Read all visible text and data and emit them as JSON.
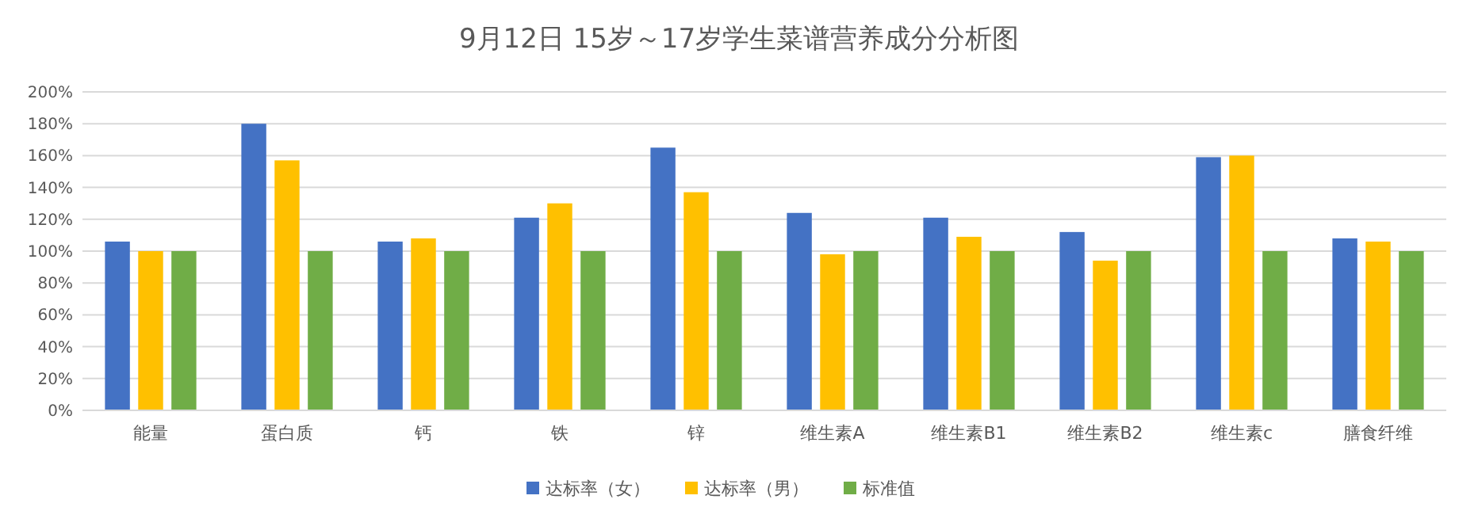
{
  "chart_data": {
    "type": "bar",
    "title": "9月12日 15岁～17岁学生菜谱营养成分分析图",
    "categories": [
      "能量",
      "蛋白质",
      "钙",
      "铁",
      "锌",
      "维生素A",
      "维生素B1",
      "维生素B2",
      "维生素c",
      "膳食纤维"
    ],
    "series": [
      {
        "name": "达标率（女）",
        "color": "#4472c4",
        "values": [
          106,
          180,
          106,
          121,
          165,
          124,
          121,
          112,
          159,
          108
        ]
      },
      {
        "name": "达标率（男）",
        "color": "#ffc000",
        "values": [
          100,
          157,
          108,
          130,
          137,
          98,
          109,
          94,
          160,
          106
        ]
      },
      {
        "name": "标准值",
        "color": "#70ad47",
        "values": [
          100,
          100,
          100,
          100,
          100,
          100,
          100,
          100,
          100,
          100
        ]
      }
    ],
    "ylim": [
      0,
      200
    ],
    "yticks": [
      {
        "value": 0,
        "label": "0%"
      },
      {
        "value": 20,
        "label": "20%"
      },
      {
        "value": 40,
        "label": "40%"
      },
      {
        "value": 60,
        "label": "60%"
      },
      {
        "value": 80,
        "label": "80%"
      },
      {
        "value": 100,
        "label": "100%"
      },
      {
        "value": 120,
        "label": "120%"
      },
      {
        "value": 140,
        "label": "140%"
      },
      {
        "value": 160,
        "label": "160%"
      },
      {
        "value": 180,
        "label": "180%"
      },
      {
        "value": 200,
        "label": "200%"
      }
    ],
    "grid": "y",
    "legend": "bottom"
  }
}
